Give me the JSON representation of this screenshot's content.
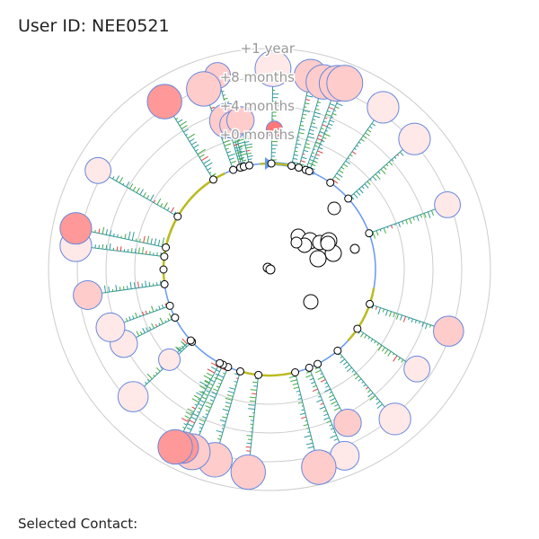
{
  "header": {
    "user_label": "User ID: NEE0521"
  },
  "footer": {
    "selected_contact_label": "Selected Contact:"
  },
  "chart_data": {
    "type": "radial-timeline",
    "ring_labels": [
      "+0 months",
      "+4 months",
      "+8 months",
      "+1 year"
    ],
    "colors": {
      "ring": "#cccccc",
      "axis_blue": "#6699ee",
      "axis_olive": "#bbbb22",
      "contact_fill_light": "#ffe8e8",
      "contact_fill_mid": "#ffcccc",
      "contact_fill_strong": "#ff9999",
      "contact_fill_selected": "#ff7777",
      "contact_stroke": "#6688dd",
      "tick_teal": "#339999",
      "tick_green": "#44aa44",
      "tick_red": "#dd4444"
    },
    "olive_arcs_deg": [
      [
        -75,
        -25
      ],
      [
        -5,
        20
      ],
      [
        100,
        132
      ],
      [
        165,
        195
      ],
      [
        262,
        300
      ]
    ],
    "contacts": [
      {
        "angle": -90,
        "reach": 0.0,
        "size": 1.0,
        "tone": "light"
      },
      {
        "angle": -15,
        "reach": 3.3,
        "size": 1.3,
        "tone": "mid"
      },
      {
        "angle": 1,
        "reach": 3.3,
        "size": 2.0,
        "tone": "light"
      },
      {
        "angle": 12,
        "reach": 3.2,
        "size": 1.8,
        "tone": "mid"
      },
      {
        "angle": 16,
        "reach": 3.1,
        "size": 1.9,
        "tone": "mid"
      },
      {
        "angle": 20,
        "reach": 3.2,
        "size": 2.0,
        "tone": "mid"
      },
      {
        "angle": 22,
        "reach": 3.3,
        "size": 2.0,
        "tone": "mid"
      },
      {
        "angle": 35,
        "reach": 3.2,
        "size": 1.7,
        "tone": "light"
      },
      {
        "angle": 48,
        "reach": 3.1,
        "size": 1.7,
        "tone": "light"
      },
      {
        "angle": 70,
        "reach": 2.9,
        "size": 1.3,
        "tone": "light"
      },
      {
        "angle": 109,
        "reach": 2.9,
        "size": 1.6,
        "tone": "mid"
      },
      {
        "angle": 124,
        "reach": 2.5,
        "size": 1.3,
        "tone": "light"
      },
      {
        "angle": 140,
        "reach": 3.1,
        "size": 1.7,
        "tone": "light"
      },
      {
        "angle": 153,
        "reach": 2.3,
        "size": 1.4,
        "tone": "mid"
      },
      {
        "angle": 158,
        "reach": 3.3,
        "size": 1.5,
        "tone": "light"
      },
      {
        "angle": 166,
        "reach": 3.4,
        "size": 1.9,
        "tone": "mid"
      },
      {
        "angle": 186,
        "reach": 3.4,
        "size": 1.9,
        "tone": "mid"
      },
      {
        "angle": 196,
        "reach": 3.2,
        "size": 1.9,
        "tone": "mid"
      },
      {
        "angle": 203,
        "reach": 3.2,
        "size": 2.0,
        "tone": "mid"
      },
      {
        "angle": 206,
        "reach": 3.2,
        "size": 1.7,
        "tone": "strong"
      },
      {
        "angle": 208,
        "reach": 3.3,
        "size": 1.9,
        "tone": "strong"
      },
      {
        "angle": 227,
        "reach": 2.8,
        "size": 1.6,
        "tone": "light"
      },
      {
        "angle": 228,
        "reach": 1.0,
        "size": 1.0,
        "tone": "light"
      },
      {
        "angle": 243,
        "reach": 2.0,
        "size": 1.4,
        "tone": "light"
      },
      {
        "angle": 250,
        "reach": 2.2,
        "size": 1.5,
        "tone": "light"
      },
      {
        "angle": 262,
        "reach": 2.7,
        "size": 1.5,
        "tone": "mid"
      },
      {
        "angle": 277,
        "reach": 3.1,
        "size": 1.7,
        "tone": "light"
      },
      {
        "angle": 282,
        "reach": 3.2,
        "size": 1.7,
        "tone": "strong"
      },
      {
        "angle": 300,
        "reach": 3.2,
        "size": 1.3,
        "tone": "light"
      },
      {
        "angle": 328,
        "reach": 3.2,
        "size": 1.9,
        "tone": "strong"
      },
      {
        "angle": 340,
        "reach": 3.0,
        "size": 1.9,
        "tone": "mid"
      },
      {
        "angle": 344,
        "reach": 1.7,
        "size": 1.9,
        "tone": "mid"
      },
      {
        "angle": 346,
        "reach": 1.5,
        "size": 1.4,
        "tone": "mid"
      },
      {
        "angle": 349,
        "reach": 1.6,
        "size": 1.4,
        "tone": "mid"
      }
    ]
  }
}
